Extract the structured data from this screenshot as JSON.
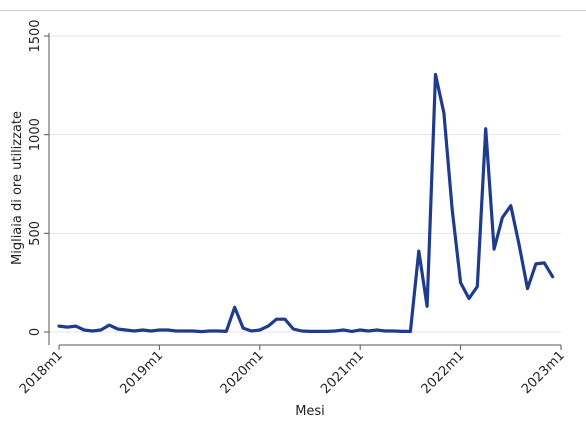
{
  "chart_data": {
    "type": "line",
    "title": "",
    "xlabel": "Mesi",
    "ylabel": "Migliaia di ore utilizzate",
    "ylim": [
      0,
      1500
    ],
    "yticks": [
      0,
      500,
      1000,
      1500
    ],
    "xticks": [
      "2018m1",
      "2019m1",
      "2020m1",
      "2021m1",
      "2022m1",
      "2023m1"
    ],
    "grid": true,
    "line_color": "#1f3b8c",
    "series": [
      {
        "x": [
          "2018m1",
          "2018m2",
          "2018m3",
          "2018m4",
          "2018m5",
          "2018m6",
          "2018m7",
          "2018m8",
          "2018m9",
          "2018m10",
          "2018m11",
          "2018m12",
          "2019m1",
          "2019m2",
          "2019m3",
          "2019m4",
          "2019m5",
          "2019m6",
          "2019m7",
          "2019m8",
          "2019m9",
          "2019m10",
          "2019m11",
          "2019m12",
          "2020m1",
          "2020m2",
          "2020m3",
          "2020m4",
          "2020m5",
          "2020m6",
          "2020m7",
          "2020m8",
          "2020m9",
          "2020m10",
          "2020m11",
          "2020m12",
          "2021m1",
          "2021m2",
          "2021m3",
          "2021m4",
          "2021m5",
          "2021m6",
          "2021m7",
          "2021m8",
          "2021m9",
          "2021m10",
          "2021m11",
          "2021m12",
          "2022m1",
          "2022m2",
          "2022m3",
          "2022m4",
          "2022m5",
          "2022m6",
          "2022m7",
          "2022m8",
          "2022m9",
          "2022m10",
          "2022m11",
          "2022m12"
        ],
        "values": [
          30,
          25,
          30,
          10,
          5,
          10,
          35,
          15,
          10,
          5,
          10,
          5,
          10,
          10,
          5,
          5,
          5,
          2,
          5,
          5,
          3,
          125,
          20,
          5,
          10,
          30,
          65,
          65,
          15,
          5,
          3,
          3,
          3,
          5,
          10,
          3,
          10,
          5,
          10,
          5,
          5,
          3,
          3,
          410,
          130,
          1305,
          1110,
          620,
          250,
          170,
          230,
          1030,
          420,
          580,
          640,
          440,
          220,
          345,
          350,
          280
        ]
      }
    ]
  }
}
